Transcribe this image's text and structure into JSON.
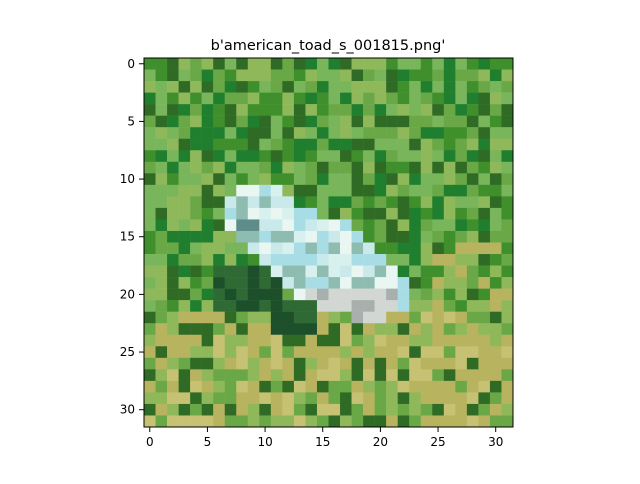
{
  "figure": {
    "title": "b'american_toad_s_001815.png'",
    "x_ticks": [
      "0",
      "5",
      "10",
      "15",
      "20",
      "25",
      "30"
    ],
    "y_ticks": [
      "0",
      "5",
      "10",
      "15",
      "20",
      "25",
      "30"
    ]
  },
  "image": {
    "subject": "american toad",
    "grid_size": 32,
    "background_colors": [
      "#3f8f2c",
      "#6aa847",
      "#8fb85a",
      "#2f6b25",
      "#b8b35f",
      "#c7c273"
    ],
    "toad_colors": [
      "#d8f0ee",
      "#a9dde6",
      "#c9e9ea",
      "#e9f6f2",
      "#8fbcb0"
    ]
  }
}
